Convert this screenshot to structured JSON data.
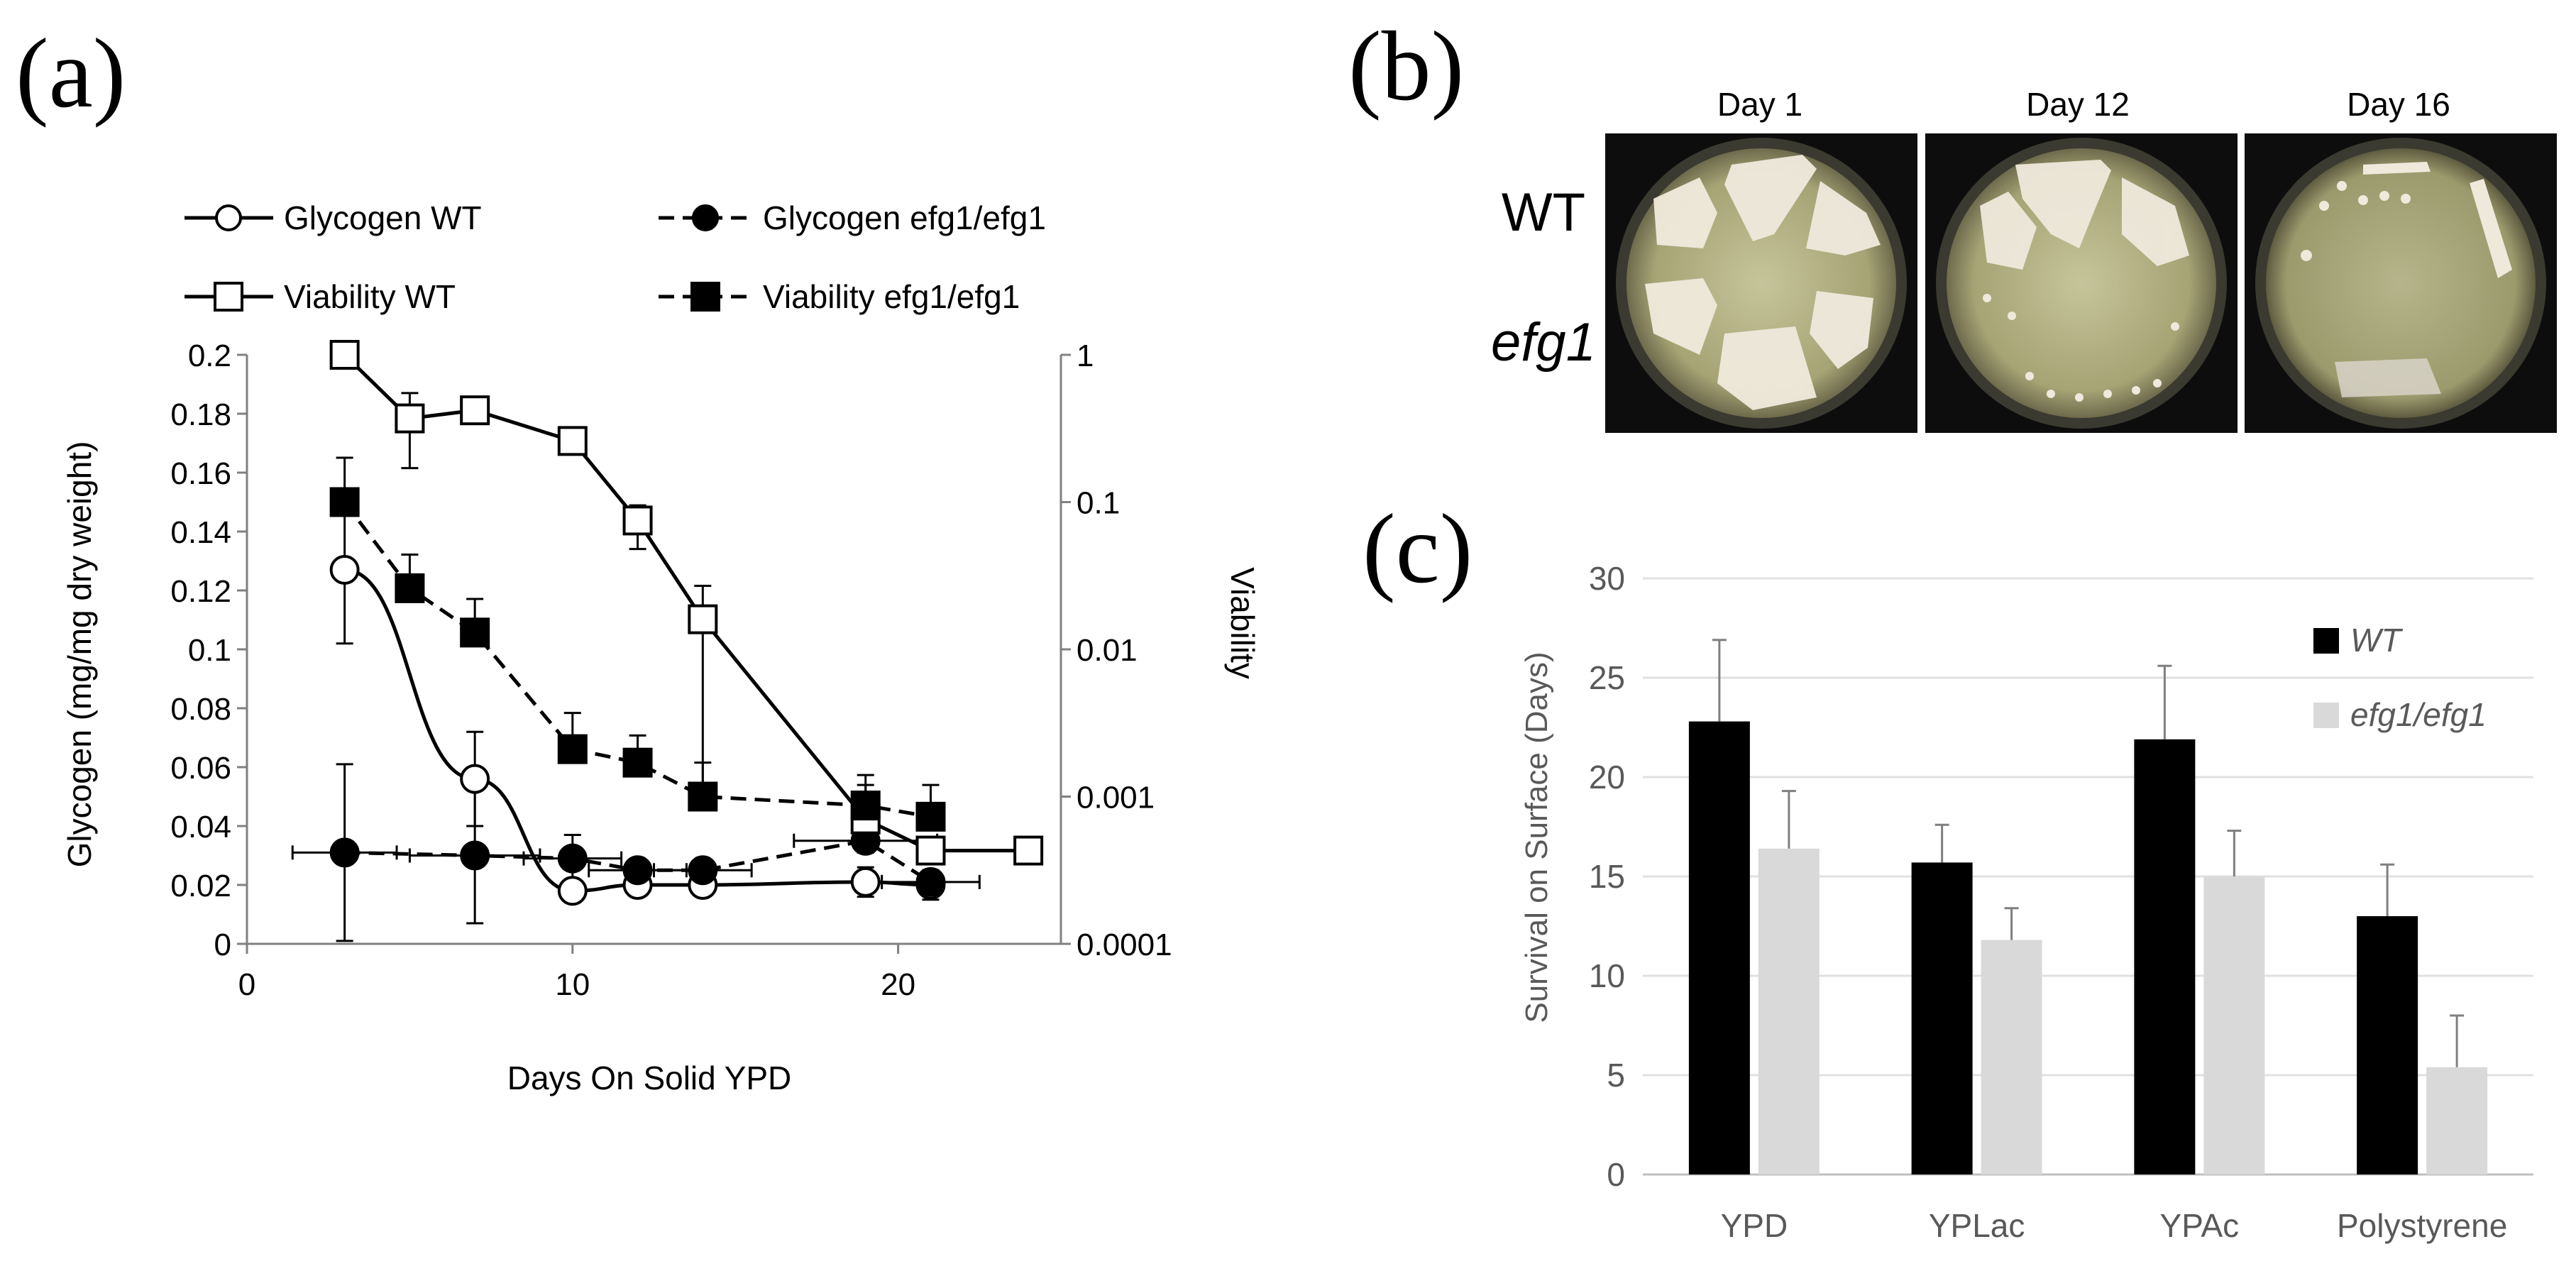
{
  "panel_labels": {
    "a": "(a)",
    "b": "(b)",
    "c": "(c)"
  },
  "chart_data": [
    {
      "id": "a",
      "type": "line",
      "xlabel": "Days On Solid YPD",
      "ylabel_left": "Glycogen (mg/mg dry weight)",
      "ylabel_right": "Viability",
      "xlim": [
        0,
        25
      ],
      "xticks": [
        0,
        10,
        20
      ],
      "ylim_left": [
        0,
        0.2
      ],
      "yticks_left": [
        "0",
        "0.02",
        "0.04",
        "0.06",
        "0.08",
        "0.1",
        "0.12",
        "0.14",
        "0.16",
        "0.18",
        "0.2"
      ],
      "ylim_right_log10": [
        -4,
        0
      ],
      "yticks_right": [
        "0.0001",
        "0.001",
        "0.01",
        "0.1",
        "1"
      ],
      "legend_position": "top",
      "series": [
        {
          "name": "Glycogen WT",
          "axis": "left",
          "marker": "circle",
          "fill": "open",
          "line": "solid",
          "x": [
            3,
            7,
            10,
            12,
            14,
            19,
            21
          ],
          "y": [
            0.127,
            0.056,
            0.018,
            0.02,
            0.02,
            0.021,
            0.02
          ],
          "err": [
            0.025,
            0.016,
            0.003,
            0.003,
            0.002,
            0.005,
            0.005
          ]
        },
        {
          "name": "Glycogen efg1/efg1",
          "axis": "left",
          "marker": "circle",
          "fill": "filled",
          "line": "dashed",
          "x": [
            3,
            7,
            10,
            12,
            14,
            19,
            21
          ],
          "y": [
            0.031,
            0.03,
            0.029,
            0.025,
            0.025,
            0.035,
            0.021
          ],
          "err": [
            0.03,
            0.023,
            0.008,
            0.003,
            0.003,
            0.004,
            0.004
          ],
          "xerr": [
            1.6,
            2,
            1.5,
            1.5,
            1.5,
            2.2,
            1.5
          ]
        },
        {
          "name": "Viability WT",
          "axis": "right",
          "marker": "square",
          "fill": "open",
          "line": "solid",
          "x": [
            3,
            5,
            7,
            10,
            12,
            14,
            19,
            21,
            24
          ],
          "y": [
            1,
            0.37,
            0.42,
            0.26,
            0.075,
            0.016,
            0.0007,
            0.00043,
            0.00043
          ],
          "err_up": [
            1,
            0.55,
            0.46,
            0.26,
            0.095,
            0.027,
            0.0012,
            0.00043,
            0.00043
          ],
          "err_low": [
            1,
            0.17,
            0.37,
            0.26,
            0.048,
            0.0011,
            0.00045,
            0.00043,
            0.00043
          ]
        },
        {
          "name": "Viability efg1/efg1",
          "axis": "right",
          "marker": "square",
          "fill": "filled",
          "line": "dashed",
          "x": [
            3,
            5,
            7,
            10,
            12,
            14,
            19,
            21
          ],
          "y": [
            0.1,
            0.026,
            0.013,
            0.0021,
            0.0017,
            0.001,
            0.00087,
            0.00073
          ],
          "err_up": [
            0.2,
            0.044,
            0.022,
            0.0037,
            0.0026,
            0.0017,
            0.0014,
            0.0012
          ],
          "err_low": [
            0.1,
            0.026,
            0.013,
            0.0021,
            0.0017,
            0.001,
            0.00087,
            0.00073
          ]
        }
      ]
    },
    {
      "id": "c",
      "type": "bar",
      "categories": [
        "YPD",
        "YPLac",
        "YPAc",
        "Polystyrene"
      ],
      "ylabel": "Survival on Surface (Days)",
      "xlabel": "",
      "ylim": [
        0,
        30
      ],
      "yticks": [
        "0",
        "5",
        "10",
        "15",
        "20",
        "25",
        "30"
      ],
      "grid": true,
      "legend_position": "top-right",
      "series": [
        {
          "name": "WT",
          "color": "#000000",
          "values": [
            22.8,
            15.7,
            21.9,
            13.0
          ],
          "err": [
            4.1,
            1.9,
            3.7,
            2.6
          ]
        },
        {
          "name": "efg1/efg1",
          "color": "#d9d9d9",
          "values": [
            16.4,
            11.8,
            15.0,
            5.4
          ],
          "err": [
            2.9,
            1.6,
            2.3,
            2.6
          ]
        }
      ]
    }
  ],
  "panel_b": {
    "columns": [
      "Day 1",
      "Day 12",
      "Day 16"
    ],
    "rows": [
      "WT",
      "efg1"
    ]
  }
}
